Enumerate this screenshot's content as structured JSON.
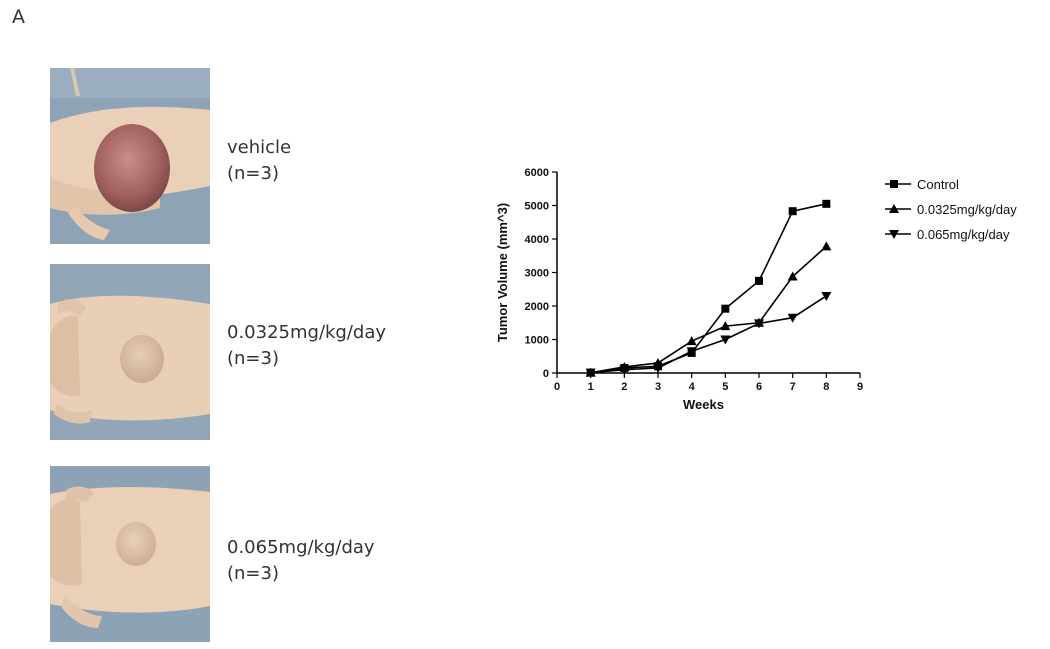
{
  "figure": {
    "panel_label": "A"
  },
  "groups": [
    {
      "name": "vehicle",
      "n": "(n=3)"
    },
    {
      "name": "0.0325mg/kg/day",
      "n": "(n=3)"
    },
    {
      "name": "0.065mg/kg/day",
      "n": "(n=3)"
    }
  ],
  "chart_data": {
    "type": "line",
    "title": "",
    "xlabel": "Weeks",
    "ylabel": "Tumor  Volume (mm^3)",
    "xlim": [
      0,
      9
    ],
    "ylim": [
      0,
      6000
    ],
    "xticks": [
      0,
      1,
      2,
      3,
      4,
      5,
      6,
      7,
      8,
      9
    ],
    "yticks": [
      0,
      1000,
      2000,
      3000,
      4000,
      5000,
      6000
    ],
    "grid": false,
    "legend_position": "right",
    "x": [
      1,
      2,
      3,
      4,
      5,
      6,
      7,
      8
    ],
    "series": [
      {
        "name": "Control",
        "marker": "square",
        "values": [
          10,
          150,
          200,
          600,
          1920,
          2750,
          4830,
          5050
        ]
      },
      {
        "name": "0.0325mg/kg/day",
        "marker": "triangle-up",
        "values": [
          10,
          180,
          300,
          950,
          1400,
          1500,
          2880,
          3780
        ]
      },
      {
        "name": "0.065mg/kg/day",
        "marker": "triangle-down",
        "values": [
          10,
          100,
          150,
          650,
          1000,
          1480,
          1650,
          2300
        ]
      }
    ]
  }
}
